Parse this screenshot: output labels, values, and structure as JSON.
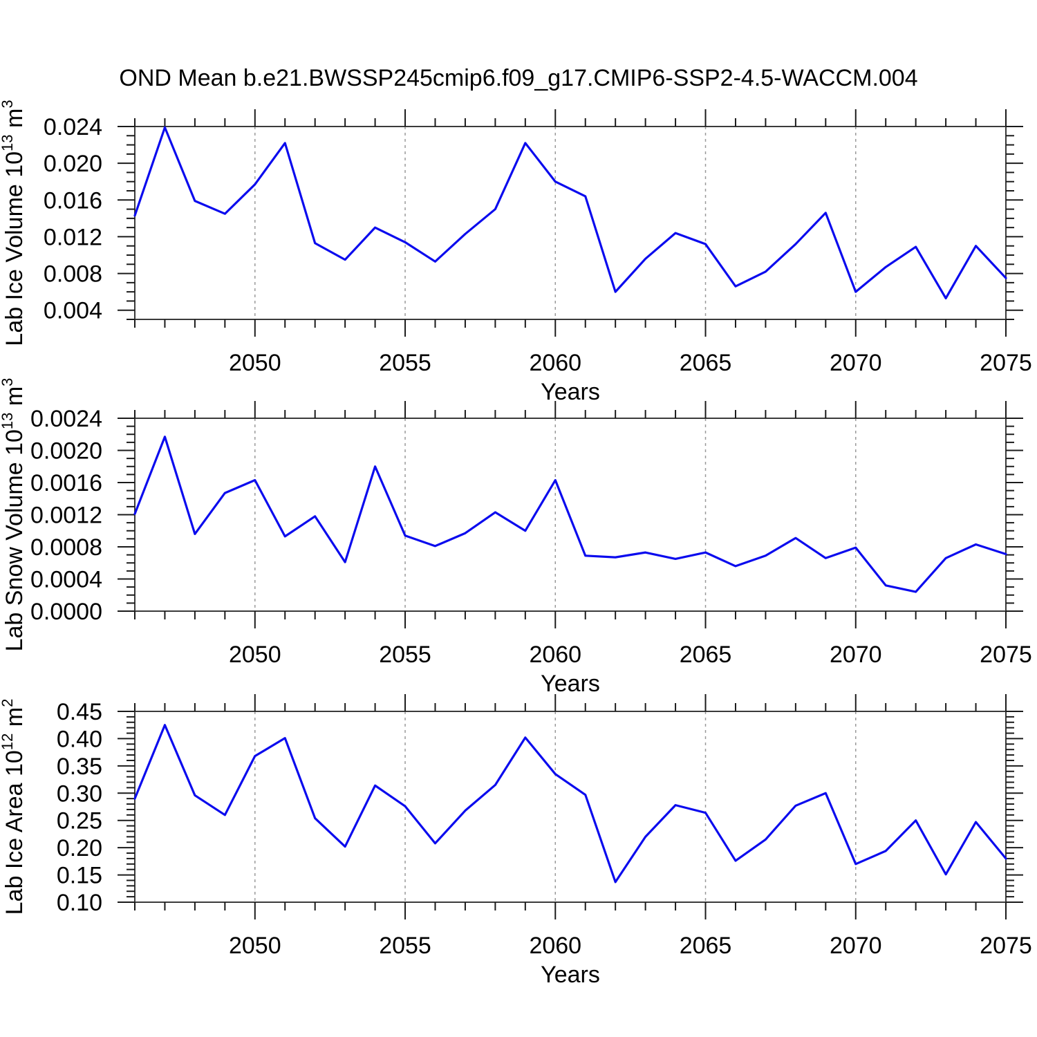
{
  "title": "OND Mean b.e21.BWSSP245cmip6.f09_g17.CMIP6-SSP2-4.5-WACCM.004",
  "colors": {
    "line": "#0b0bee",
    "grid": "#999999",
    "frame": "#3a3a3a",
    "tick": "#1a1a1a",
    "text": "#000000",
    "background": "#ffffff"
  },
  "x_axis": {
    "label": "Years",
    "range": [
      2046,
      2075
    ],
    "major_ticks": [
      2050,
      2055,
      2060,
      2065,
      2070,
      2075
    ],
    "major_tick_labels": [
      "2050",
      "2055",
      "2060",
      "2065",
      "2070",
      "2075"
    ],
    "minor_step": 1,
    "gridlines": true
  },
  "chart_data": [
    {
      "type": "line",
      "name": "lab-ice-volume",
      "ylabel": "Lab Ice Volume 10^13 m^3",
      "ylabel_segments": [
        {
          "t": "Lab Ice Volume 10"
        },
        {
          "t": "13",
          "sup": true
        },
        {
          "t": " m"
        },
        {
          "t": "3",
          "sup": true
        }
      ],
      "xlabel": "Years",
      "ylim": [
        0.003,
        0.024
      ],
      "yticks": [
        0.004,
        0.008,
        0.012,
        0.016,
        0.02,
        0.024
      ],
      "ytick_labels": [
        "0.004",
        "0.008",
        "0.012",
        "0.016",
        "0.020",
        "0.024"
      ],
      "y_minor_step": 0.001,
      "x": [
        2046,
        2047,
        2048,
        2049,
        2050,
        2051,
        2052,
        2053,
        2054,
        2055,
        2056,
        2057,
        2058,
        2059,
        2060,
        2061,
        2062,
        2063,
        2064,
        2065,
        2066,
        2067,
        2068,
        2069,
        2070,
        2071,
        2072,
        2073,
        2074,
        2075
      ],
      "values": [
        0.0143,
        0.0239,
        0.0159,
        0.0145,
        0.0177,
        0.0222,
        0.0113,
        0.0095,
        0.013,
        0.0114,
        0.0093,
        0.0123,
        0.015,
        0.0222,
        0.018,
        0.0164,
        0.006,
        0.0096,
        0.0124,
        0.0112,
        0.0066,
        0.0082,
        0.0112,
        0.0146,
        0.006,
        0.0087,
        0.0109,
        0.0053,
        0.011,
        0.0075
      ]
    },
    {
      "type": "line",
      "name": "lab-snow-volume",
      "ylabel": "Lab Snow Volume 10^13 m^3",
      "ylabel_segments": [
        {
          "t": "Lab Snow Volume 10"
        },
        {
          "t": "13",
          "sup": true
        },
        {
          "t": " m"
        },
        {
          "t": "3",
          "sup": true
        }
      ],
      "xlabel": "Years",
      "ylim": [
        0.0,
        0.0024
      ],
      "yticks": [
        0.0,
        0.0004,
        0.0008,
        0.0012,
        0.0016,
        0.002,
        0.0024
      ],
      "ytick_labels": [
        "0.0000",
        "0.0004",
        "0.0008",
        "0.0012",
        "0.0016",
        "0.0020",
        "0.0024"
      ],
      "y_minor_step": 0.0001,
      "x": [
        2046,
        2047,
        2048,
        2049,
        2050,
        2051,
        2052,
        2053,
        2054,
        2055,
        2056,
        2057,
        2058,
        2059,
        2060,
        2061,
        2062,
        2063,
        2064,
        2065,
        2066,
        2067,
        2068,
        2069,
        2070,
        2071,
        2072,
        2073,
        2074,
        2075
      ],
      "values": [
        0.00121,
        0.00217,
        0.00096,
        0.00147,
        0.00163,
        0.00093,
        0.00118,
        0.00061,
        0.0018,
        0.00094,
        0.00081,
        0.00097,
        0.00123,
        0.001,
        0.00163,
        0.00069,
        0.00067,
        0.00073,
        0.00065,
        0.00073,
        0.00056,
        0.00069,
        0.00091,
        0.00066,
        0.00079,
        0.00032,
        0.00024,
        0.00066,
        0.00083,
        0.00071
      ]
    },
    {
      "type": "line",
      "name": "lab-ice-area",
      "ylabel": "Lab Ice Area 10^12 m^2",
      "ylabel_segments": [
        {
          "t": "Lab Ice Area 10"
        },
        {
          "t": "12",
          "sup": true
        },
        {
          "t": " m"
        },
        {
          "t": "2",
          "sup": true
        }
      ],
      "xlabel": "Years",
      "ylim": [
        0.1,
        0.45
      ],
      "yticks": [
        0.1,
        0.15,
        0.2,
        0.25,
        0.3,
        0.35,
        0.4,
        0.45
      ],
      "ytick_labels": [
        "0.10",
        "0.15",
        "0.20",
        "0.25",
        "0.30",
        "0.35",
        "0.40",
        "0.45"
      ],
      "y_minor_step": 0.01,
      "x": [
        2046,
        2047,
        2048,
        2049,
        2050,
        2051,
        2052,
        2053,
        2054,
        2055,
        2056,
        2057,
        2058,
        2059,
        2060,
        2061,
        2062,
        2063,
        2064,
        2065,
        2066,
        2067,
        2068,
        2069,
        2070,
        2071,
        2072,
        2073,
        2074,
        2075
      ],
      "values": [
        0.29,
        0.425,
        0.296,
        0.26,
        0.368,
        0.401,
        0.254,
        0.202,
        0.314,
        0.276,
        0.208,
        0.268,
        0.315,
        0.402,
        0.335,
        0.297,
        0.137,
        0.22,
        0.278,
        0.264,
        0.176,
        0.215,
        0.277,
        0.3,
        0.17,
        0.194,
        0.25,
        0.151,
        0.247,
        0.18
      ]
    }
  ]
}
